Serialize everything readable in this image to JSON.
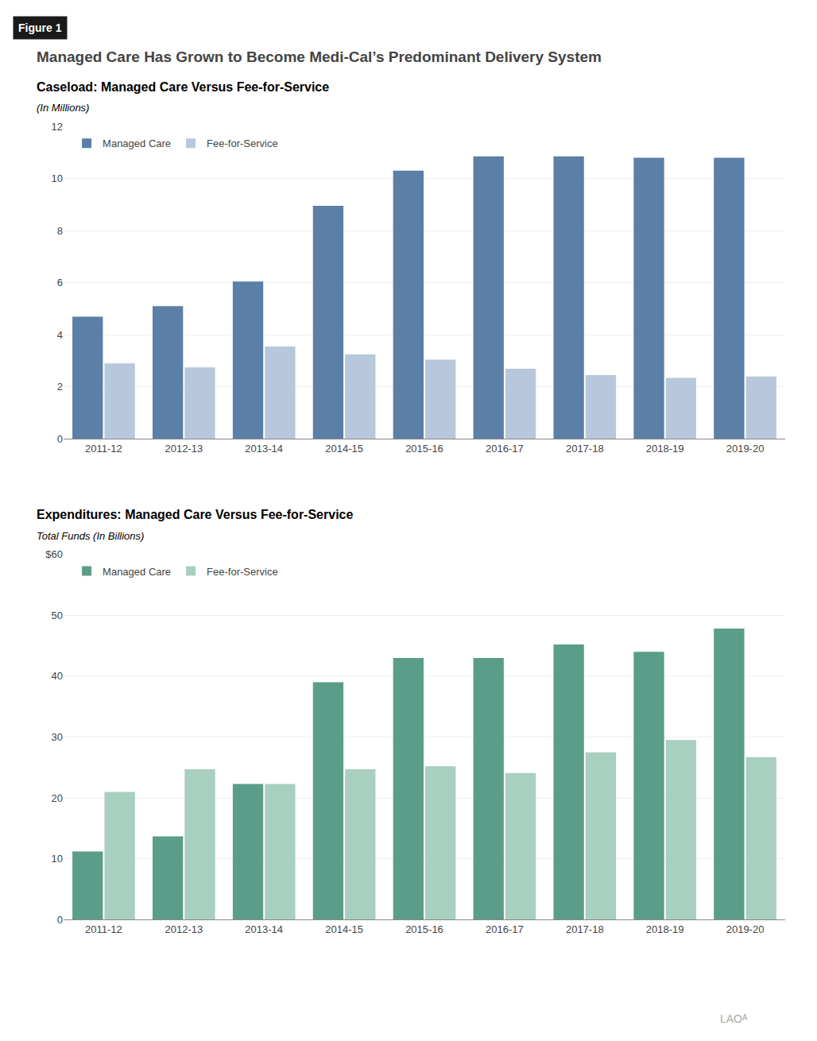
{
  "title": "Managed Care Has Grown to Become Medi-Cal’s Predominant Delivery System",
  "annotations": [
    "Figure 1",
    "LAOᴬ"
  ],
  "chart_data": [
    {
      "type": "bar",
      "title": "Caseload: Managed Care Versus Fee-for-Service",
      "subtitle": "(In Millions)",
      "categories": [
        "2011-12",
        "2012-13",
        "2013-14",
        "2014-15",
        "2015-16",
        "2016-17",
        "2017-18",
        "2018-19",
        "2019-20"
      ],
      "series": [
        {
          "name": "Managed Care",
          "color": "#5b7fa6",
          "values": [
            4.7,
            5.1,
            6.05,
            8.95,
            10.3,
            10.85,
            10.85,
            10.8,
            10.8
          ]
        },
        {
          "name": "Fee-for-Service",
          "color": "#b8c8dc",
          "values": [
            2.9,
            2.75,
            3.55,
            3.25,
            3.05,
            2.7,
            2.45,
            2.35,
            2.4
          ]
        }
      ],
      "ylim": [
        0,
        12
      ],
      "yticks": [
        0,
        2,
        4,
        6,
        8,
        10,
        12
      ],
      "grid": true,
      "legend": "upper left"
    },
    {
      "type": "bar",
      "title": "Expenditures: Managed Care Versus Fee-for-Service",
      "subtitle": "Total Funds (In Billions)",
      "categories": [
        "2011-12",
        "2012-13",
        "2013-14",
        "2014-15",
        "2015-16",
        "2016-17",
        "2017-18",
        "2018-19",
        "2019-20"
      ],
      "series": [
        {
          "name": "Managed Care",
          "color": "#5a9e8a",
          "values": [
            11.2,
            13.7,
            22.3,
            39.0,
            43.0,
            43.0,
            45.2,
            44.0,
            47.8
          ]
        },
        {
          "name": "Fee-for-Service",
          "color": "#a8cfbf",
          "values": [
            21.0,
            24.7,
            22.3,
            24.7,
            25.2,
            24.1,
            27.5,
            29.5,
            26.7
          ]
        }
      ],
      "ylim": [
        0,
        60
      ],
      "yticks": [
        0,
        10,
        20,
        30,
        40,
        50,
        {
          "value": 60,
          "label": "$60"
        }
      ],
      "grid": true,
      "legend": "upper left"
    }
  ]
}
